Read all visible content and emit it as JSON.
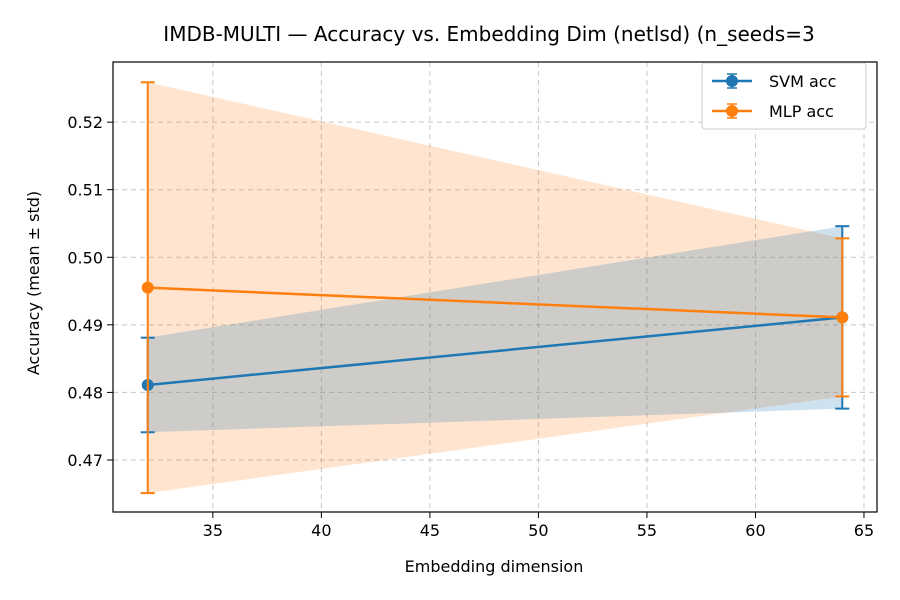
{
  "chart_data": {
    "type": "line",
    "title": "IMDB-MULTI — Accuracy vs. Embedding Dim (netlsd)  (n_seeds=3",
    "xlabel": "Embedding dimension",
    "ylabel": "Accuracy (mean ± std)",
    "x": [
      32,
      64
    ],
    "xlim": [
      30.4,
      65.6
    ],
    "ylim": [
      0.4623,
      0.5289
    ],
    "xticks": [
      35,
      40,
      45,
      50,
      55,
      60,
      65
    ],
    "yticks": [
      0.47,
      0.48,
      0.49,
      0.5,
      0.51,
      0.52
    ],
    "ytick_labels": [
      "0.47",
      "0.48",
      "0.49",
      "0.50",
      "0.51",
      "0.52"
    ],
    "grid": true,
    "legend_position": "top-right",
    "series": [
      {
        "name": "SVM acc",
        "color": "#1f77b4",
        "fill": "#c6dbef",
        "mean": [
          0.4811,
          0.4911
        ],
        "std": [
          0.007,
          0.0135
        ]
      },
      {
        "name": "MLP acc",
        "color": "#ff7f0e",
        "fill": "#ffe2c8",
        "mean": [
          0.4955,
          0.4911
        ],
        "std": [
          0.0304,
          0.0117
        ]
      }
    ]
  }
}
